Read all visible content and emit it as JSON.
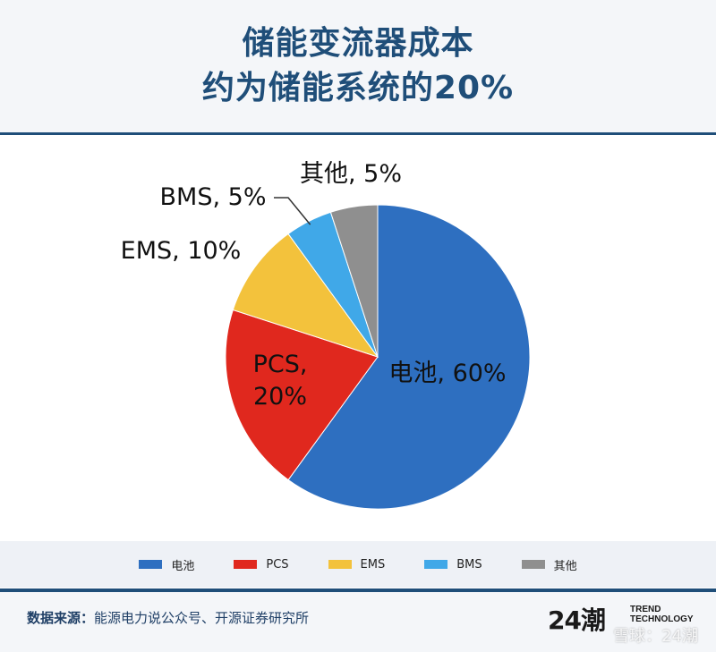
{
  "header": {
    "title_line1": "储能变流器成本",
    "title_line2": "约为储能系统的20%"
  },
  "chart_data": {
    "type": "pie",
    "title": "储能变流器成本约为储能系统的20%",
    "slices": [
      {
        "name": "电池",
        "value": 60,
        "label": "电池, 60%",
        "color": "#2e6fc0"
      },
      {
        "name": "PCS",
        "value": 20,
        "label_lines": [
          "PCS,",
          "20%"
        ],
        "color": "#e0281e"
      },
      {
        "name": "EMS",
        "value": 10,
        "label": "EMS, 10%",
        "color": "#f3c23c"
      },
      {
        "name": "BMS",
        "value": 5,
        "label": "BMS, 5%",
        "color": "#40a8e8"
      },
      {
        "name": "其他",
        "value": 5,
        "label": "其他, 5%",
        "color": "#8f8f8f"
      }
    ],
    "legend": {
      "placement": "bottom",
      "entries": [
        "电池",
        "PCS",
        "EMS",
        "BMS",
        "其他"
      ]
    }
  },
  "footer": {
    "source_label": "数据来源：",
    "source_text": "能源电力说公众号、开源证券研究所",
    "brand_mark": "24潮",
    "brand_line1": "TREND",
    "brand_line2": "TECHNOLOGY",
    "watermark": "雪球：24潮"
  }
}
